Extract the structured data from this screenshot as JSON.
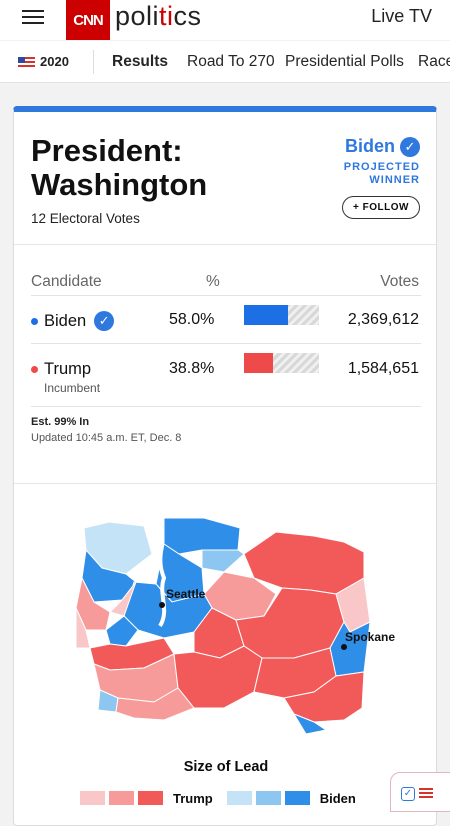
{
  "header": {
    "logo_text": "CNN",
    "section_part1": "poli",
    "section_part2": "ti",
    "section_part3": "cs",
    "live_tv": "Live TV"
  },
  "subnav": {
    "year": "2020",
    "items": [
      "Results",
      "Road To 270",
      "Presidential Polls",
      "Race"
    ]
  },
  "race": {
    "title_line1": "President:",
    "title_line2": "Washington",
    "electoral_votes": "12 Electoral Votes",
    "winner": "Biden",
    "projected_line1": "PROJECTED",
    "projected_line2": "WINNER",
    "follow": "+ FOLLOW"
  },
  "table": {
    "headers": {
      "candidate": "Candidate",
      "pct": "%",
      "votes": "Votes"
    },
    "rows": [
      {
        "name": "Biden",
        "pct": "58.0%",
        "pct_value": 58.0,
        "votes": "2,369,612",
        "color": "#1d6fe5",
        "winner": true,
        "note": ""
      },
      {
        "name": "Trump",
        "pct": "38.8%",
        "pct_value": 38.8,
        "votes": "1,584,651",
        "color": "#ef4a4a",
        "winner": false,
        "note": "Incumbent"
      }
    ],
    "est": "Est. 99% In",
    "updated": "Updated 10:45 a.m. ET, Dec. 8"
  },
  "map": {
    "cities": [
      "Seattle",
      "Spokane"
    ],
    "colors": {
      "trump_light": "#f9c7c7",
      "trump_mid": "#f79a9a",
      "trump_dark": "#f25a5a",
      "biden_light": "#c5e3f7",
      "biden_mid": "#8dc6f0",
      "biden_dark": "#2f8ee8"
    }
  },
  "legend": {
    "title": "Size of Lead",
    "trump": "Trump",
    "biden": "Biden"
  }
}
